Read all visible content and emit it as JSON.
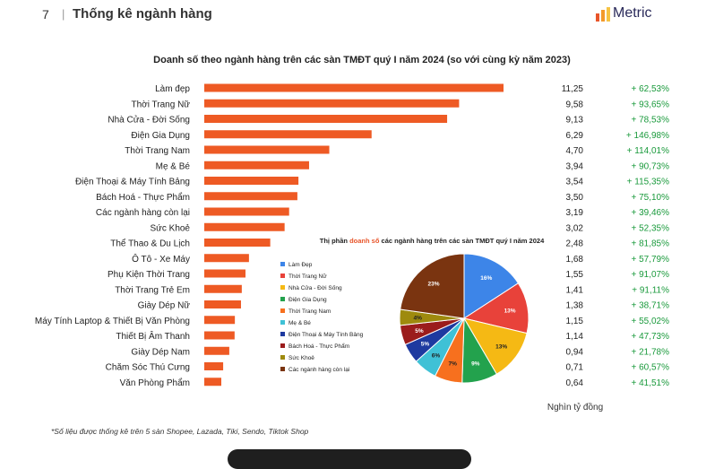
{
  "header": {
    "page_number": "7",
    "separator": "|",
    "title": "Thống kê ngành hàng",
    "logo_text": "Metric",
    "logo_colors": [
      "#e8552a",
      "#f39a2b",
      "#f6c343"
    ]
  },
  "footnote": "*Số liệu được thống kê trên 5 sàn Shopee, Lazada, Tiki, Sendo, Tiktok Shop",
  "chart_data": [
    {
      "type": "bar",
      "orientation": "horizontal",
      "title": "Doanh số theo ngành hàng trên các sàn TMĐT quý I năm 2024 (so với cùng kỳ năm 2023)",
      "unit_label": "Nghìn tỷ đồng",
      "bar_color": "#ee5a24",
      "growth_color": "#1a9a3c",
      "categories": [
        "Làm đẹp",
        "Thời Trang Nữ",
        "Nhà Cửa - Đời Sống",
        "Điện Gia Dụng",
        "Thời Trang Nam",
        "Mẹ & Bé",
        "Điện Thoại & Máy Tính Bảng",
        "Bách Hoá - Thực Phẩm",
        "Các ngành hàng còn lại",
        "Sức Khoẻ",
        "Thể Thao & Du Lịch",
        "Ô Tô - Xe Máy",
        "Phụ Kiện Thời Trang",
        "Thời Trang Trẻ Em",
        "Giày Dép Nữ",
        "Máy Tính Laptop & Thiết Bị Văn Phòng",
        "Thiết Bị Âm Thanh",
        "Giày Dép Nam",
        "Chăm Sóc Thú Cưng",
        "Văn Phòng Phẩm"
      ],
      "values": [
        11.25,
        9.58,
        9.13,
        6.29,
        4.7,
        3.94,
        3.54,
        3.5,
        3.19,
        3.02,
        2.48,
        1.68,
        1.55,
        1.41,
        1.38,
        1.15,
        1.14,
        0.94,
        0.71,
        0.64
      ],
      "value_labels": [
        "11,25",
        "9,58",
        "9,13",
        "6,29",
        "4,70",
        "3,94",
        "3,54",
        "3,50",
        "3,19",
        "3,02",
        "2,48",
        "1,68",
        "1,55",
        "1,41",
        "1,38",
        "1,15",
        "1,14",
        "0,94",
        "0,71",
        "0,64"
      ],
      "growth_labels": [
        "+ 62,53%",
        "+ 93,65%",
        "+ 78,53%",
        "+ 146,98%",
        "+ 114,01%",
        "+ 90,73%",
        "+ 115,35%",
        "+ 75,10%",
        "+ 39,46%",
        "+ 52,35%",
        "+ 81,85%",
        "+ 57,79%",
        "+ 91,07%",
        "+ 91,11%",
        "+ 38,71%",
        "+ 55,02%",
        "+ 47,73%",
        "+ 21,78%",
        "+ 60,57%",
        "+ 41,51%"
      ]
    },
    {
      "type": "pie",
      "title_parts": [
        "Thị phần ",
        "doanh số",
        " các ngành hàng trên các sàn TMĐT quý I năm 2024"
      ],
      "title_highlight_color": "#e8552a",
      "legend_position": "left",
      "labels": [
        "Làm Đẹp",
        "Thời Trang Nữ",
        "Nhà Cửa - Đời Sống",
        "Điện Gia Dụng",
        "Thời Trang Nam",
        "Mẹ & Bé",
        "Điện Thoại & Máy Tính Bảng",
        "Bách Hoá - Thực Phẩm",
        "Sức Khoẻ",
        "Các ngành hàng còn lại"
      ],
      "values": [
        16,
        13,
        13,
        9,
        7,
        6,
        5,
        5,
        4,
        23
      ],
      "slice_labels": [
        "16%",
        "13%",
        "13%",
        "9%",
        "7%",
        "6%",
        "5%",
        "5%",
        "4%",
        "23%"
      ],
      "colors": [
        "#3d85e8",
        "#e8423a",
        "#f5b914",
        "#23a24d",
        "#f7701e",
        "#3fc1d6",
        "#1e3aa0",
        "#9b1c1c",
        "#9e8a0e",
        "#7a3410"
      ]
    }
  ]
}
